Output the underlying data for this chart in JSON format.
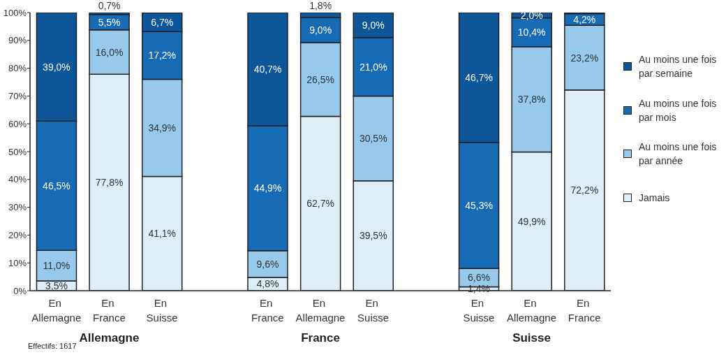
{
  "chart_data": {
    "type": "bar",
    "stacked": true,
    "categories": [
      "En Allemagne",
      "En France",
      "En Suisse",
      null,
      "En France",
      "En Allemagne",
      "En Suisse",
      null,
      "En Suisse",
      "En Allemagne",
      "En France"
    ],
    "series": [
      {
        "name": "Jamais",
        "color": "#ddeef9",
        "values": [
          3.5,
          77.8,
          41.1,
          null,
          4.8,
          62.7,
          39.5,
          null,
          1.4,
          49.9,
          72.2
        ],
        "value_labels": [
          "3,5%",
          "77,8%",
          "41,1%",
          null,
          "4,8%",
          "62,7%",
          "39,5%",
          null,
          "1,4%",
          "49,9%",
          "72,2%"
        ]
      },
      {
        "name": "Au moins une fois par année",
        "color": "#96c9ec",
        "values": [
          11.0,
          16.0,
          34.9,
          null,
          9.6,
          26.5,
          30.5,
          null,
          6.6,
          37.8,
          23.2
        ],
        "value_labels": [
          "11,0%",
          "16,0%",
          "34,9%",
          null,
          "9,6%",
          "26,5%",
          "30,5%",
          null,
          "6,6%",
          "37,8%",
          "23,2%"
        ]
      },
      {
        "name": "Au moins une fois par mois",
        "color": "#176bb5",
        "values": [
          46.5,
          5.5,
          17.2,
          null,
          44.9,
          9.0,
          21.0,
          null,
          45.3,
          10.4,
          4.2
        ],
        "value_labels": [
          "46,5%",
          "5,5%",
          "17,2%",
          null,
          "44,9%",
          "9,0%",
          "21,0%",
          null,
          "45,3%",
          "10,4%",
          "4,2%"
        ]
      },
      {
        "name": "Au moins une fois par semaine",
        "color": "#0d5699",
        "values": [
          39.0,
          0.7,
          6.7,
          null,
          40.7,
          1.8,
          9.0,
          null,
          46.7,
          2.0,
          0.4
        ],
        "value_labels": [
          "39,0%",
          "0,7%",
          "6,7%",
          null,
          "40,7%",
          "1,8%",
          "9,0%",
          null,
          "46,7%",
          "2,0%",
          null
        ]
      }
    ],
    "ylim": [
      0,
      100
    ],
    "yticks": [
      {
        "value": 0,
        "label": "0%"
      },
      {
        "value": 10,
        "label": "10%"
      },
      {
        "value": 20,
        "label": "20%"
      },
      {
        "value": 30,
        "label": "30%"
      },
      {
        "value": 40,
        "label": "40%"
      },
      {
        "value": 50,
        "label": "50%"
      },
      {
        "value": 60,
        "label": "60%"
      },
      {
        "value": 70,
        "label": "70%"
      },
      {
        "value": 80,
        "label": "80%"
      },
      {
        "value": 90,
        "label": "90%"
      },
      {
        "value": 100,
        "label": "100%"
      }
    ],
    "legend": "right",
    "annotations": [
      "Allemagne",
      "France",
      "Suisse",
      "Effectifs: 1617"
    ]
  }
}
